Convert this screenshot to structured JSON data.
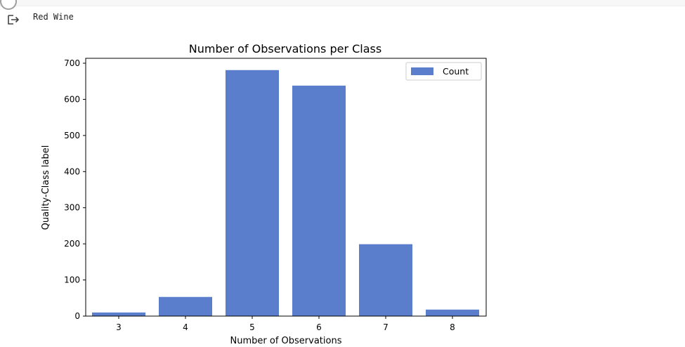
{
  "output": {
    "text": "Red Wine"
  },
  "chart_data": {
    "type": "bar",
    "title": "Number of Observations per Class",
    "xlabel": "Number of Observations",
    "ylabel": "Quality-Class label",
    "categories": [
      "3",
      "4",
      "5",
      "6",
      "7",
      "8"
    ],
    "series": [
      {
        "name": "Count",
        "values": [
          10,
          53,
          681,
          638,
          199,
          18
        ]
      }
    ],
    "ylim": [
      0,
      700
    ],
    "yticks": [
      0,
      100,
      200,
      300,
      400,
      500,
      600,
      700
    ],
    "legend": "top-right",
    "grid": false,
    "bar_color": "#5a7ecb"
  }
}
